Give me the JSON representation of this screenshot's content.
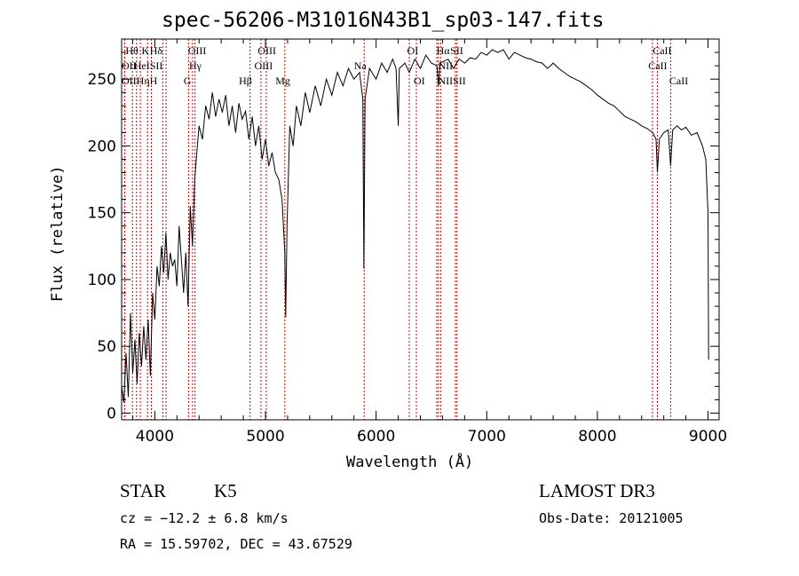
{
  "chart_data": {
    "type": "line",
    "title": "spec-56206-M31016N43B1_sp03-147.fits",
    "xlabel": "Wavelength (Å)",
    "ylabel": "Flux (relative)",
    "xlim": [
      3700,
      9100
    ],
    "ylim": [
      -5,
      280
    ],
    "xticks": [
      4000,
      5000,
      6000,
      7000,
      8000,
      9000
    ],
    "yticks": [
      0,
      50,
      100,
      150,
      200,
      250
    ],
    "x_minor_step": 200,
    "y_minor_step": 10,
    "series": [
      {
        "name": "flux",
        "points": [
          [
            3700,
            20
          ],
          [
            3720,
            8
          ],
          [
            3740,
            45
          ],
          [
            3760,
            12
          ],
          [
            3780,
            75
          ],
          [
            3800,
            30
          ],
          [
            3820,
            55
          ],
          [
            3840,
            22
          ],
          [
            3860,
            60
          ],
          [
            3880,
            35
          ],
          [
            3900,
            65
          ],
          [
            3920,
            40
          ],
          [
            3940,
            70
          ],
          [
            3960,
            28
          ],
          [
            3980,
            90
          ],
          [
            4000,
            70
          ],
          [
            4020,
            110
          ],
          [
            4040,
            95
          ],
          [
            4060,
            125
          ],
          [
            4080,
            105
          ],
          [
            4100,
            135
          ],
          [
            4120,
            100
          ],
          [
            4140,
            120
          ],
          [
            4160,
            110
          ],
          [
            4180,
            115
          ],
          [
            4200,
            95
          ],
          [
            4220,
            140
          ],
          [
            4240,
            115
          ],
          [
            4260,
            90
          ],
          [
            4280,
            120
          ],
          [
            4300,
            80
          ],
          [
            4320,
            155
          ],
          [
            4340,
            125
          ],
          [
            4360,
            175
          ],
          [
            4380,
            195
          ],
          [
            4400,
            215
          ],
          [
            4430,
            205
          ],
          [
            4460,
            230
          ],
          [
            4490,
            220
          ],
          [
            4520,
            240
          ],
          [
            4550,
            222
          ],
          [
            4580,
            235
          ],
          [
            4610,
            225
          ],
          [
            4640,
            238
          ],
          [
            4670,
            215
          ],
          [
            4700,
            230
          ],
          [
            4730,
            210
          ],
          [
            4760,
            232
          ],
          [
            4790,
            220
          ],
          [
            4820,
            226
          ],
          [
            4850,
            205
          ],
          [
            4880,
            222
          ],
          [
            4910,
            200
          ],
          [
            4940,
            215
          ],
          [
            4970,
            190
          ],
          [
            5000,
            205
          ],
          [
            5030,
            185
          ],
          [
            5060,
            195
          ],
          [
            5090,
            180
          ],
          [
            5120,
            175
          ],
          [
            5150,
            160
          ],
          [
            5175,
            120
          ],
          [
            5183,
            72
          ],
          [
            5195,
            140
          ],
          [
            5220,
            215
          ],
          [
            5250,
            200
          ],
          [
            5280,
            230
          ],
          [
            5320,
            215
          ],
          [
            5360,
            240
          ],
          [
            5400,
            225
          ],
          [
            5450,
            245
          ],
          [
            5500,
            230
          ],
          [
            5550,
            250
          ],
          [
            5600,
            238
          ],
          [
            5650,
            255
          ],
          [
            5700,
            245
          ],
          [
            5750,
            258
          ],
          [
            5800,
            250
          ],
          [
            5850,
            255
          ],
          [
            5880,
            235
          ],
          [
            5890,
            108
          ],
          [
            5900,
            235
          ],
          [
            5940,
            258
          ],
          [
            6000,
            250
          ],
          [
            6050,
            262
          ],
          [
            6100,
            255
          ],
          [
            6150,
            265
          ],
          [
            6180,
            258
          ],
          [
            6200,
            215
          ],
          [
            6210,
            258
          ],
          [
            6260,
            262
          ],
          [
            6300,
            255
          ],
          [
            6350,
            265
          ],
          [
            6400,
            258
          ],
          [
            6450,
            268
          ],
          [
            6500,
            262
          ],
          [
            6550,
            260
          ],
          [
            6563,
            245
          ],
          [
            6580,
            262
          ],
          [
            6650,
            265
          ],
          [
            6700,
            258
          ],
          [
            6750,
            265
          ],
          [
            6800,
            262
          ],
          [
            6850,
            266
          ],
          [
            6900,
            265
          ],
          [
            6950,
            270
          ],
          [
            7000,
            268
          ],
          [
            7050,
            272
          ],
          [
            7100,
            270
          ],
          [
            7150,
            272
          ],
          [
            7200,
            265
          ],
          [
            7250,
            270
          ],
          [
            7300,
            268
          ],
          [
            7350,
            266
          ],
          [
            7400,
            265
          ],
          [
            7450,
            263
          ],
          [
            7500,
            262
          ],
          [
            7550,
            258
          ],
          [
            7600,
            262
          ],
          [
            7650,
            258
          ],
          [
            7700,
            255
          ],
          [
            7750,
            252
          ],
          [
            7800,
            250
          ],
          [
            7850,
            248
          ],
          [
            7900,
            245
          ],
          [
            7950,
            242
          ],
          [
            8000,
            238
          ],
          [
            8050,
            235
          ],
          [
            8100,
            232
          ],
          [
            8150,
            230
          ],
          [
            8200,
            226
          ],
          [
            8250,
            222
          ],
          [
            8300,
            220
          ],
          [
            8350,
            218
          ],
          [
            8400,
            215
          ],
          [
            8450,
            213
          ],
          [
            8500,
            210
          ],
          [
            8530,
            205
          ],
          [
            8542,
            180
          ],
          [
            8560,
            205
          ],
          [
            8600,
            210
          ],
          [
            8640,
            212
          ],
          [
            8662,
            185
          ],
          [
            8680,
            212
          ],
          [
            8720,
            215
          ],
          [
            8760,
            212
          ],
          [
            8800,
            214
          ],
          [
            8850,
            208
          ],
          [
            8900,
            210
          ],
          [
            8950,
            200
          ],
          [
            8980,
            190
          ],
          [
            9000,
            150
          ],
          [
            9005,
            40
          ]
        ]
      }
    ],
    "lines": [
      {
        "x": 3728,
        "labels": [
          "OII",
          "OII"
        ]
      },
      {
        "x": 3798,
        "labels": [
          "Hθ",
          "Hη"
        ]
      },
      {
        "x": 3835,
        "labels": [
          "Hη"
        ]
      },
      {
        "x": 3869,
        "labels": [
          "HeI"
        ]
      },
      {
        "x": 3934,
        "labels": [
          "K"
        ]
      },
      {
        "x": 3969,
        "labels": [
          "H"
        ]
      },
      {
        "x": 4072,
        "labels": [
          "SII"
        ]
      },
      {
        "x": 4102,
        "labels": [
          "Hδ"
        ]
      },
      {
        "x": 4305,
        "labels": [
          "G"
        ]
      },
      {
        "x": 4341,
        "labels": [
          "Hγ"
        ]
      },
      {
        "x": 4363,
        "labels": [
          "OIII"
        ]
      },
      {
        "x": 4861,
        "labels": [
          "Hβ"
        ]
      },
      {
        "x": 4959,
        "labels": [
          "OIII"
        ]
      },
      {
        "x": 5007,
        "labels": [
          "OIII"
        ]
      },
      {
        "x": 5175,
        "labels": [
          "Mg"
        ]
      },
      {
        "x": 5892,
        "labels": [
          "Na"
        ]
      },
      {
        "x": 6300,
        "labels": [
          "OI"
        ]
      },
      {
        "x": 6364,
        "labels": [
          "OI"
        ]
      },
      {
        "x": 6548,
        "labels": [
          "NII"
        ]
      },
      {
        "x": 6563,
        "labels": [
          "Hα"
        ]
      },
      {
        "x": 6583,
        "labels": [
          "NII"
        ]
      },
      {
        "x": 6716,
        "labels": [
          "SII"
        ]
      },
      {
        "x": 6731,
        "labels": [
          "SII"
        ]
      },
      {
        "x": 8498,
        "labels": [
          "CaII"
        ]
      },
      {
        "x": 8542,
        "labels": [
          "CaII"
        ]
      },
      {
        "x": 8662,
        "labels": [
          "CaII"
        ]
      }
    ],
    "line_labels": [
      {
        "text": "Hθ",
        "x": 3735,
        "row": 1
      },
      {
        "text": "K",
        "x": 3880,
        "row": 1
      },
      {
        "text": "Hδ",
        "x": 3955,
        "row": 1
      },
      {
        "text": "OIII",
        "x": 4300,
        "row": 1
      },
      {
        "text": "OIII",
        "x": 4930,
        "row": 1
      },
      {
        "text": "OI",
        "x": 6280,
        "row": 1
      },
      {
        "text": "Hα",
        "x": 6545,
        "row": 1
      },
      {
        "text": "SII",
        "x": 6670,
        "row": 1
      },
      {
        "text": "CaII",
        "x": 8500,
        "row": 1
      },
      {
        "text": "OII",
        "x": 3700,
        "row": 2
      },
      {
        "text": "HeISII",
        "x": 3810,
        "row": 2
      },
      {
        "text": "Hγ",
        "x": 4310,
        "row": 2
      },
      {
        "text": "OIII",
        "x": 4900,
        "row": 2
      },
      {
        "text": "Na",
        "x": 5800,
        "row": 2
      },
      {
        "text": "NII",
        "x": 6560,
        "row": 2
      },
      {
        "text": "CaII",
        "x": 8460,
        "row": 2
      },
      {
        "text": "OIIHηH",
        "x": 3700,
        "row": 3
      },
      {
        "text": "G",
        "x": 4260,
        "row": 3
      },
      {
        "text": "Hβ",
        "x": 4760,
        "row": 3
      },
      {
        "text": "Mg",
        "x": 5090,
        "row": 3
      },
      {
        "text": "OI",
        "x": 6340,
        "row": 3
      },
      {
        "text": "NIISII",
        "x": 6560,
        "row": 3
      },
      {
        "text": "CaII",
        "x": 8650,
        "row": 3
      }
    ]
  },
  "info": {
    "object_class": "STAR",
    "subclass": "K5",
    "redshift": "cz = −12.2 ± 6.8 km/s",
    "coords": "RA =  15.59702, DEC =  43.67529",
    "survey": "LAMOST DR3",
    "obs_date": "Obs-Date: 20121005"
  },
  "colors": {
    "line_marker": "#cc0000",
    "spectrum": "#000000"
  }
}
